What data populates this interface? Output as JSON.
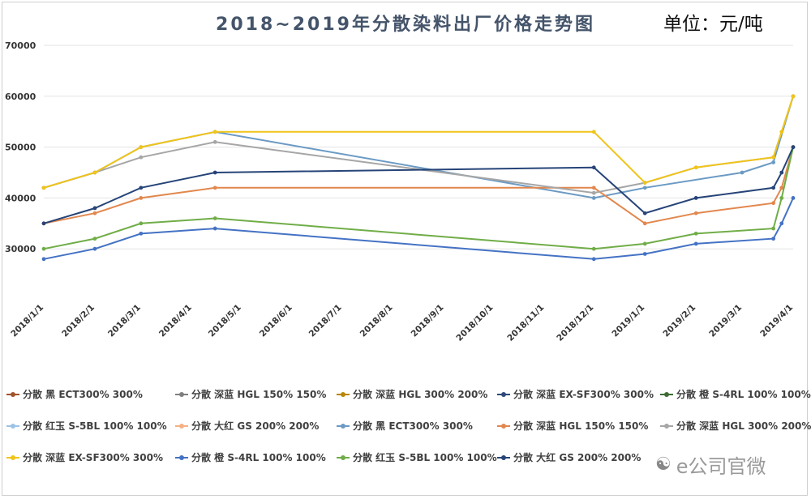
{
  "chart_data": {
    "type": "line",
    "title": "2018~2019年分散染料出厂价格走势图",
    "unit_label": "单位：元/吨",
    "ylim": [
      20000,
      70000
    ],
    "yticks": [
      30000,
      40000,
      50000,
      60000,
      70000
    ],
    "grid": true,
    "legend_position": "bottom",
    "x": [
      "2018/1/1",
      "2018/2/1",
      "2018/3/1",
      "2018/4/1",
      "2018/5/1",
      "2018/6/1",
      "2018/7/1",
      "2018/8/1",
      "2018/9/1",
      "2018/10/1",
      "2018/11/1",
      "2018/12/1",
      "2019/1/1",
      "2019/2/1",
      "2019/3/1",
      "2019/4/1"
    ],
    "xticks": [
      "2018/1/1",
      "2018/2/1",
      "2018/3/1",
      "2018/4/1",
      "2018/5/1",
      "2018/6/1",
      "2018/7/1",
      "2018/8/1",
      "2018/9/1",
      "2018/10/1",
      "2018/11/1",
      "2018/12/1",
      "2019/1/1",
      "2019/2/1",
      "2019/3/1",
      "2019/4/1"
    ],
    "series": [
      {
        "name": "分散 黑 ECT300% 300%",
        "color": "#a0522d",
        "points": []
      },
      {
        "name": "分散 深蓝 HGL 150% 150%",
        "color": "#7f7f7f",
        "points": []
      },
      {
        "name": "分散 深蓝 HGL 300% 200%",
        "color": "#b8860b",
        "points": []
      },
      {
        "name": "分散 深蓝 EX-SF300% 300%",
        "color": "#2e4a7a",
        "points": []
      },
      {
        "name": "分散 橙 S-4RL 100% 100%",
        "color": "#3d6b35",
        "points": []
      },
      {
        "name": "分散 红玉 S-5BL 100% 100%",
        "color": "#9cc3e6",
        "points": []
      },
      {
        "name": "分散 大红 GS 200% 200%",
        "color": "#f4b183",
        "points": []
      },
      {
        "name": "分散 黑 ECT300% 300%",
        "color": "#6b9ac4",
        "points": [
          [
            "2018/1/1",
            42000
          ],
          [
            "2018/2/1",
            45000
          ],
          [
            "2018/3/1",
            50000
          ],
          [
            "2018/4/15",
            53000
          ],
          [
            "2018/12/1",
            40000
          ],
          [
            "2019/1/1",
            42000
          ],
          [
            "2019/3/1",
            45000
          ],
          [
            "2019/3/20",
            47000
          ],
          [
            "2019/4/1",
            60000
          ]
        ]
      },
      {
        "name": "分散 深蓝 HGL 150% 150%",
        "color": "#e2874d",
        "points": [
          [
            "2018/1/1",
            35000
          ],
          [
            "2018/2/1",
            37000
          ],
          [
            "2018/3/1",
            40000
          ],
          [
            "2018/4/15",
            42000
          ],
          [
            "2018/12/1",
            42000
          ],
          [
            "2019/1/1",
            35000
          ],
          [
            "2019/2/1",
            37000
          ],
          [
            "2019/3/20",
            39000
          ],
          [
            "2019/3/25",
            42000
          ],
          [
            "2019/4/1",
            50000
          ]
        ]
      },
      {
        "name": "分散 深蓝 HGL 300% 200%",
        "color": "#a6a6a6",
        "points": [
          [
            "2018/1/1",
            42000
          ],
          [
            "2018/2/1",
            45000
          ],
          [
            "2018/3/1",
            48000
          ],
          [
            "2018/4/15",
            51000
          ],
          [
            "2018/12/1",
            41000
          ],
          [
            "2019/1/1",
            43000
          ],
          [
            "2019/2/1",
            46000
          ],
          [
            "2019/3/20",
            48000
          ],
          [
            "2019/4/1",
            60000
          ]
        ]
      },
      {
        "name": "分散 深蓝 EX-SF300% 300%",
        "color": "#f0c419",
        "points": [
          [
            "2018/1/1",
            42000
          ],
          [
            "2018/2/1",
            45000
          ],
          [
            "2018/3/1",
            50000
          ],
          [
            "2018/4/15",
            53000
          ],
          [
            "2018/12/1",
            53000
          ],
          [
            "2019/1/1",
            43000
          ],
          [
            "2019/2/1",
            46000
          ],
          [
            "2019/3/20",
            48000
          ],
          [
            "2019/3/25",
            53000
          ],
          [
            "2019/4/1",
            60000
          ]
        ]
      },
      {
        "name": "分散 橙 S-4RL 100% 100%",
        "color": "#4472c4",
        "points": [
          [
            "2018/1/1",
            28000
          ],
          [
            "2018/2/1",
            30000
          ],
          [
            "2018/3/1",
            33000
          ],
          [
            "2018/4/15",
            34000
          ],
          [
            "2018/12/1",
            28000
          ],
          [
            "2019/1/1",
            29000
          ],
          [
            "2019/2/1",
            31000
          ],
          [
            "2019/3/20",
            32000
          ],
          [
            "2019/3/25",
            35000
          ],
          [
            "2019/4/1",
            40000
          ]
        ]
      },
      {
        "name": "分散 红玉 S-5BL 100% 100%",
        "color": "#70ad47",
        "points": [
          [
            "2018/1/1",
            30000
          ],
          [
            "2018/2/1",
            32000
          ],
          [
            "2018/3/1",
            35000
          ],
          [
            "2018/4/15",
            36000
          ],
          [
            "2018/12/1",
            30000
          ],
          [
            "2019/1/1",
            31000
          ],
          [
            "2019/2/1",
            33000
          ],
          [
            "2019/3/20",
            34000
          ],
          [
            "2019/3/25",
            40000
          ],
          [
            "2019/4/1",
            50000
          ]
        ]
      },
      {
        "name": "分散 大红 GS 200% 200%",
        "color": "#264478",
        "points": [
          [
            "2018/1/1",
            35000
          ],
          [
            "2018/2/1",
            38000
          ],
          [
            "2018/3/1",
            42000
          ],
          [
            "2018/4/15",
            45000
          ],
          [
            "2018/12/1",
            46000
          ],
          [
            "2019/1/1",
            37000
          ],
          [
            "2019/2/1",
            40000
          ],
          [
            "2019/3/20",
            42000
          ],
          [
            "2019/3/25",
            45000
          ],
          [
            "2019/4/1",
            50000
          ]
        ]
      }
    ]
  },
  "watermark": {
    "icon": "wechat-icon",
    "text": "e公司官微"
  }
}
